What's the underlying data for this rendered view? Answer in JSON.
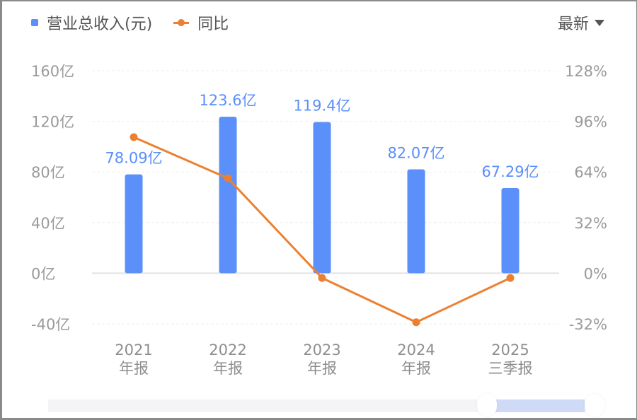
{
  "legend": {
    "revenue_label": "营业总收入(元)",
    "yoy_label": "同比"
  },
  "period_selector": {
    "label": "最新"
  },
  "colors": {
    "bar": "#5b8ff9",
    "line": "#ed8030",
    "axis_text": "#9a9a9a",
    "grid": "#ececec"
  },
  "left_axis_ticks": [
    "160亿",
    "120亿",
    "80亿",
    "40亿",
    "0亿",
    "-40亿"
  ],
  "right_axis_ticks": [
    "128%",
    "96%",
    "64%",
    "32%",
    "0%",
    "-32%"
  ],
  "x_labels": [
    {
      "year": "2021",
      "period": "年报"
    },
    {
      "year": "2022",
      "period": "年报"
    },
    {
      "year": "2023",
      "period": "年报"
    },
    {
      "year": "2024",
      "period": "年报"
    },
    {
      "year": "2025",
      "period": "三季报"
    }
  ],
  "bar_labels": [
    "78.09亿",
    "123.6亿",
    "119.4亿",
    "82.07亿",
    "67.29亿"
  ],
  "chart_data": {
    "type": "bar",
    "title": "",
    "categories": [
      "2021 年报",
      "2022 年报",
      "2023 年报",
      "2024 年报",
      "2025 三季报"
    ],
    "series": [
      {
        "name": "营业总收入(元)",
        "type": "bar",
        "axis": "left",
        "unit": "亿",
        "values": [
          78.09,
          123.6,
          119.4,
          82.07,
          67.29
        ]
      },
      {
        "name": "同比",
        "type": "line",
        "axis": "right",
        "unit": "%",
        "values": [
          86,
          60,
          -3,
          -31,
          -3
        ]
      }
    ],
    "left_axis": {
      "label": "",
      "ylim": [
        -40,
        160
      ],
      "ticks": [
        160,
        120,
        80,
        40,
        0,
        -40
      ],
      "unit": "亿"
    },
    "right_axis": {
      "label": "",
      "ylim": [
        -32,
        128
      ],
      "ticks": [
        128,
        96,
        64,
        32,
        0,
        -32
      ],
      "unit": "%"
    },
    "grid": true,
    "legend_position": "top-left"
  },
  "scrollbar": {
    "range_start_pct": 80,
    "range_end_pct": 100
  }
}
